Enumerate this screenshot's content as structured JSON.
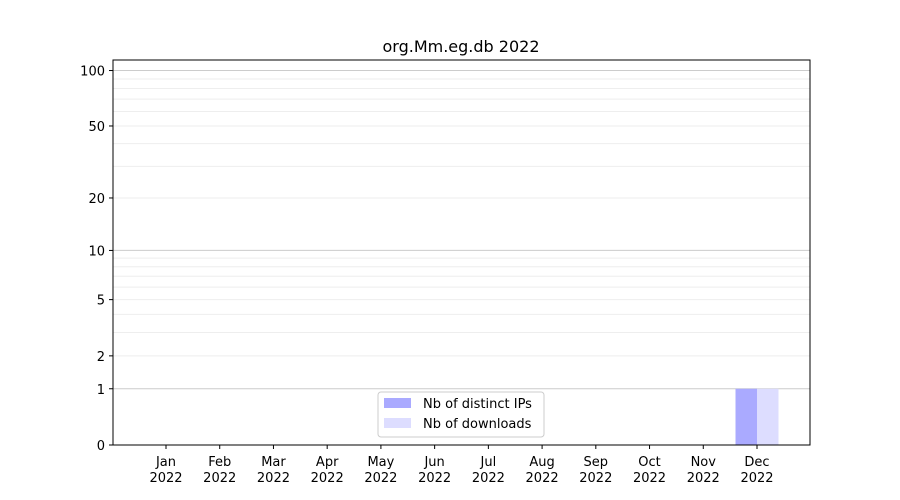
{
  "chart_data": {
    "type": "bar",
    "title": "org.Mm.eg.db 2022",
    "xlabel": "",
    "ylabel": "",
    "y_scale": "log(1+y)",
    "ylim": [
      0,
      114
    ],
    "y_ticks": [
      0,
      1,
      2,
      5,
      10,
      20,
      50,
      100
    ],
    "grid": true,
    "categories": [
      "Jan\n2022",
      "Feb\n2022",
      "Mar\n2022",
      "Apr\n2022",
      "May\n2022",
      "Jun\n2022",
      "Jul\n2022",
      "Aug\n2022",
      "Sep\n2022",
      "Oct\n2022",
      "Nov\n2022",
      "Dec\n2022"
    ],
    "series": [
      {
        "name": "Nb of distinct IPs",
        "color": "#aaaaff",
        "values": [
          0,
          0,
          0,
          0,
          0,
          0,
          0,
          0,
          0,
          0,
          0,
          1
        ]
      },
      {
        "name": "Nb of downloads",
        "color": "#ddddff",
        "values": [
          0,
          0,
          0,
          0,
          0,
          0,
          0,
          0,
          0,
          0,
          0,
          1
        ]
      }
    ],
    "legend_position": "bottom-center"
  }
}
